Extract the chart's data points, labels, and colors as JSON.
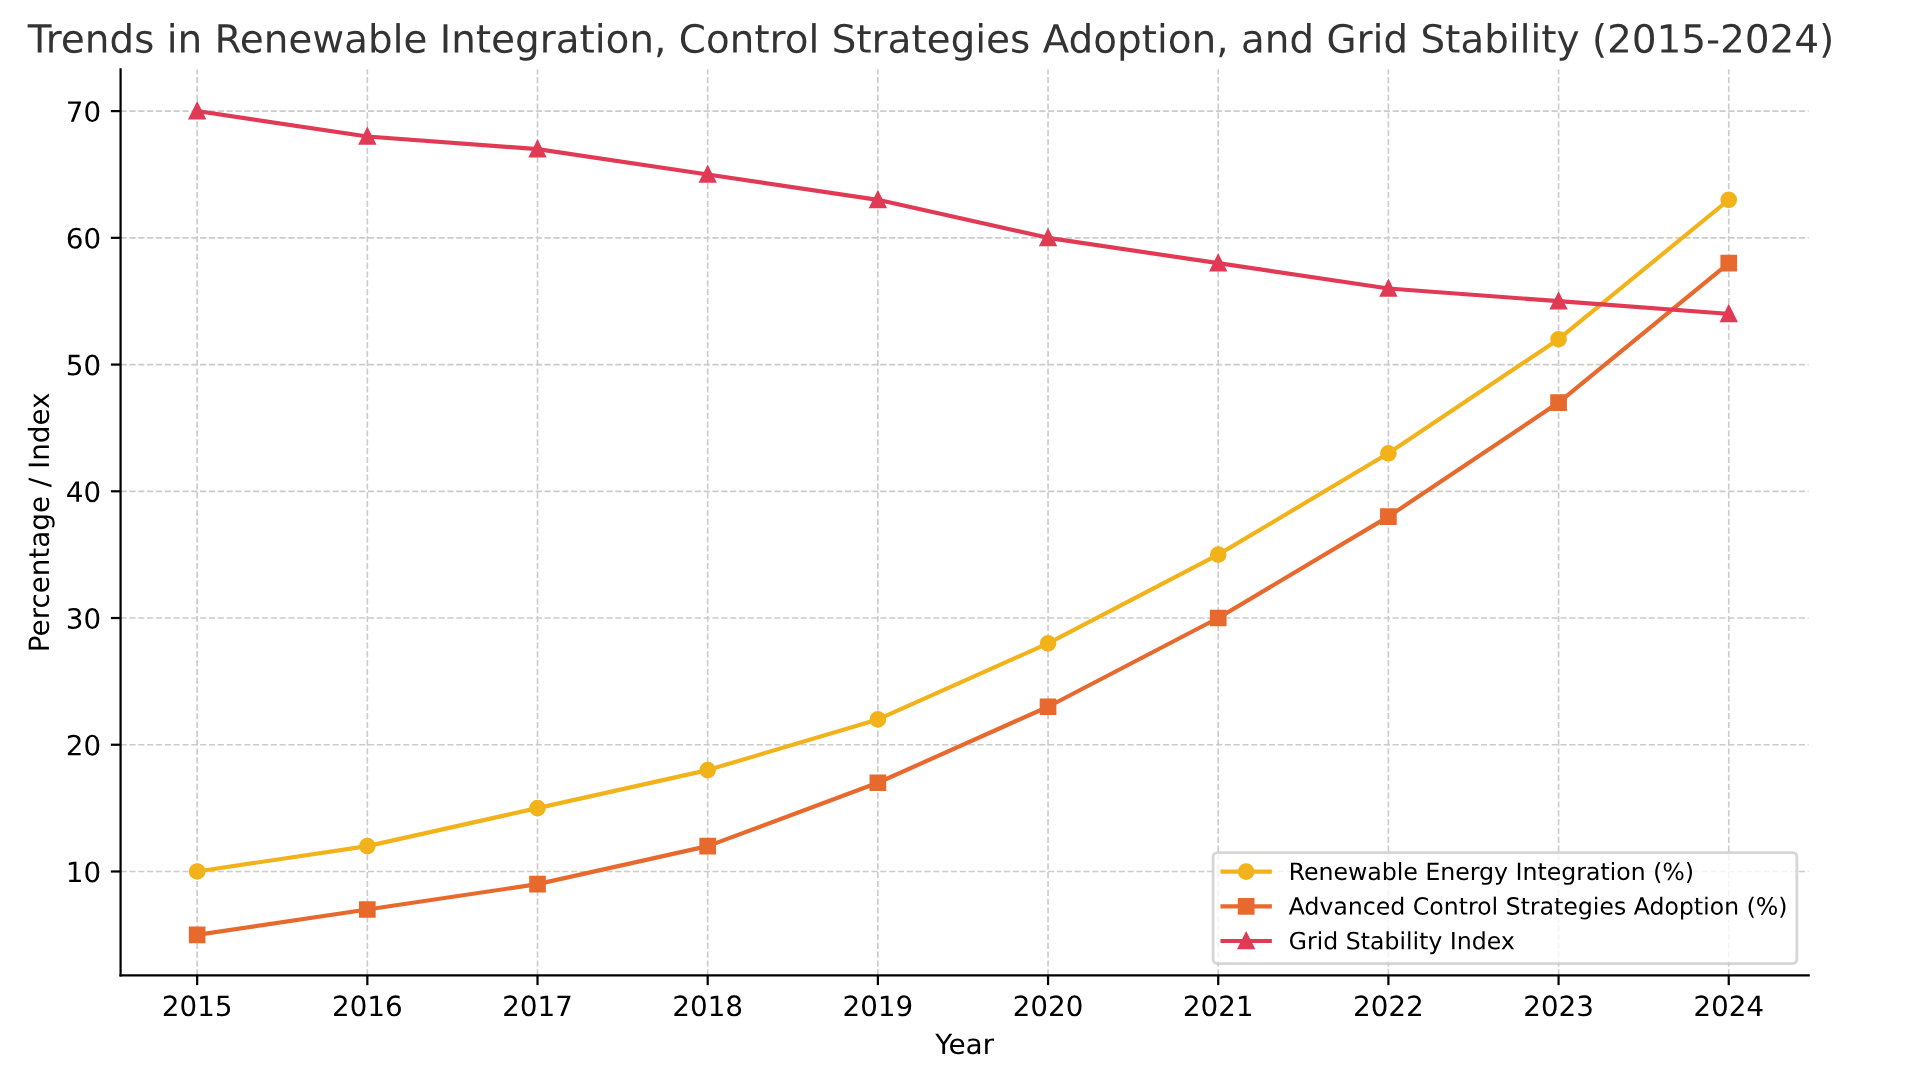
{
  "chart_data": {
    "type": "line",
    "title": "Trends in Renewable Integration, Control Strategies Adoption, and Grid Stability (2015-2024)",
    "xlabel": "Year",
    "ylabel": "Percentage / Index",
    "x": [
      2015,
      2016,
      2017,
      2018,
      2019,
      2020,
      2021,
      2022,
      2023,
      2024
    ],
    "series": [
      {
        "name": "Renewable Energy Integration (%)",
        "color": "#f2b31a",
        "marker": "circle",
        "values": [
          10,
          12,
          15,
          18,
          22,
          28,
          35,
          43,
          52,
          63
        ]
      },
      {
        "name": "Advanced Control Strategies Adoption (%)",
        "color": "#e8692d",
        "marker": "square",
        "values": [
          5,
          7,
          9,
          12,
          17,
          23,
          30,
          38,
          47,
          58
        ]
      },
      {
        "name": "Grid Stability Index",
        "color": "#e03a55",
        "marker": "triangle",
        "values": [
          70,
          68,
          67,
          65,
          63,
          60,
          58,
          56,
          55,
          54
        ]
      }
    ],
    "xlim": [
      2014.55,
      2024.47
    ],
    "ylim": [
      1.8,
      73.3
    ],
    "xticks": [
      2015,
      2016,
      2017,
      2018,
      2019,
      2020,
      2021,
      2022,
      2023,
      2024
    ],
    "yticks": [
      10,
      20,
      30,
      40,
      50,
      60,
      70
    ],
    "grid": true,
    "legend": "bottom right",
    "line_style": "solid"
  }
}
